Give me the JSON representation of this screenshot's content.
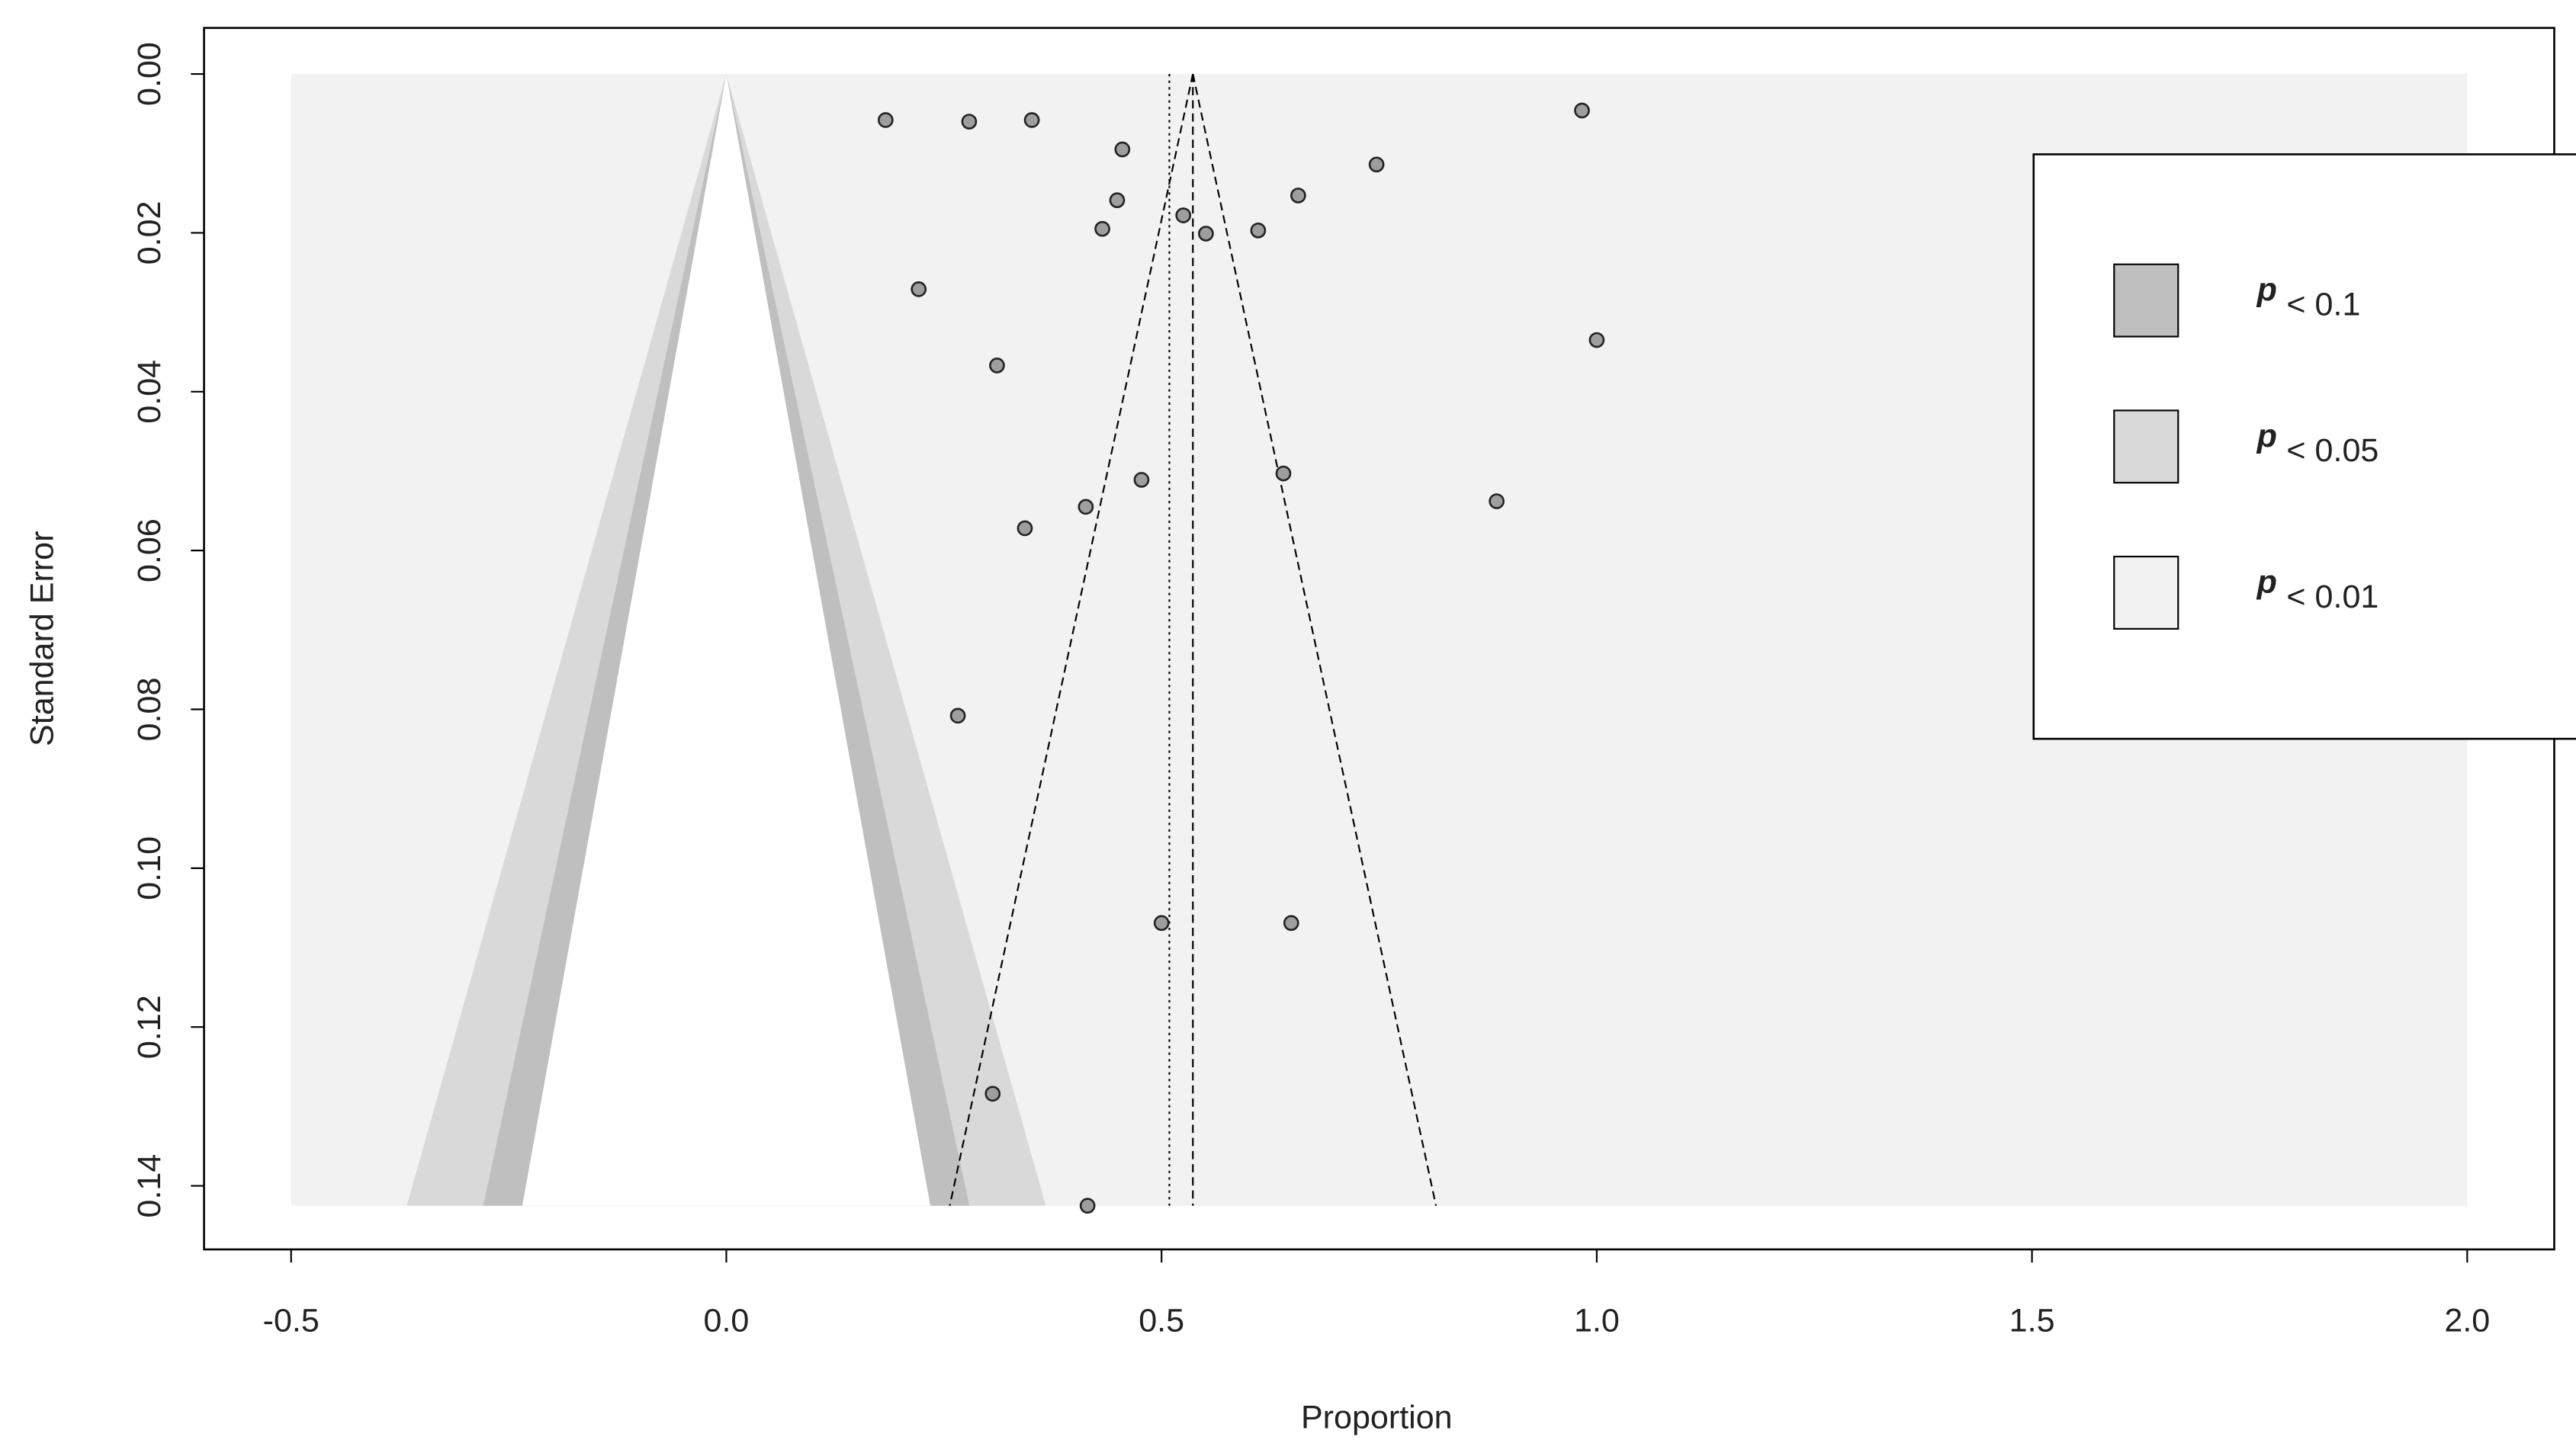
{
  "chart_data": {
    "type": "funnel",
    "x_label": "Proportion",
    "y_label": "Standard Error",
    "x": [
      0.183,
      0.279,
      0.351,
      0.983,
      0.455,
      0.747,
      0.449,
      0.657,
      0.525,
      0.432,
      0.551,
      0.611,
      0.221,
      1.0,
      0.311,
      0.477,
      0.64,
      0.885,
      0.413,
      0.343,
      0.266,
      0.5,
      0.649,
      0.306,
      0.415
    ],
    "values": [
      0.0058,
      0.006,
      0.0058,
      0.0046,
      0.0095,
      0.0114,
      0.0159,
      0.0153,
      0.0178,
      0.0195,
      0.0201,
      0.0197,
      0.0271,
      0.0335,
      0.0367,
      0.0511,
      0.0503,
      0.0538,
      0.0545,
      0.0572,
      0.0808,
      0.1069,
      0.1069,
      0.1284,
      0.1425
    ],
    "point_color": "#9e9e9e",
    "xlim": [
      -0.6,
      2.1
    ],
    "ylim": [
      -0.0058,
      0.148
    ],
    "y_reversed": true,
    "xticks": [
      -0.5,
      {
        "value": 0,
        "label": "0.0"
      },
      0.5,
      {
        "value": 1,
        "label": "1.0"
      },
      1.5,
      {
        "value": 2,
        "label": "2.0"
      }
    ],
    "yticks": [
      {
        "value": 0,
        "label": "0.00"
      },
      {
        "value": 0.02,
        "label": "0.02"
      },
      {
        "value": 0.04,
        "label": "0.04"
      },
      {
        "value": 0.06,
        "label": "0.06"
      },
      {
        "value": 0.08,
        "label": "0.08"
      },
      {
        "value": 0.1,
        "label": "0.10"
      },
      {
        "value": 0.12,
        "label": "0.12"
      },
      {
        "value": 0.14,
        "label": "0.14"
      }
    ],
    "contour_center": 0,
    "background_color": "#ffffff",
    "contours": [
      {
        "symbol": "p",
        "label": "< 0.1",
        "level": 0.1,
        "color": "#bfbfbf"
      },
      {
        "symbol": "p",
        "label": "< 0.05",
        "level": 0.05,
        "color": "#d9d9d9"
      },
      {
        "symbol": "p",
        "label": "< 0.01",
        "level": 0.01,
        "color": "#f2f2f2"
      }
    ],
    "estimates": [
      {
        "value": 0.509,
        "style": "dotted"
      },
      {
        "value": 0.536,
        "style": "dashed"
      }
    ],
    "funnel_estimate": 1,
    "funnel_level": 0.05
  }
}
